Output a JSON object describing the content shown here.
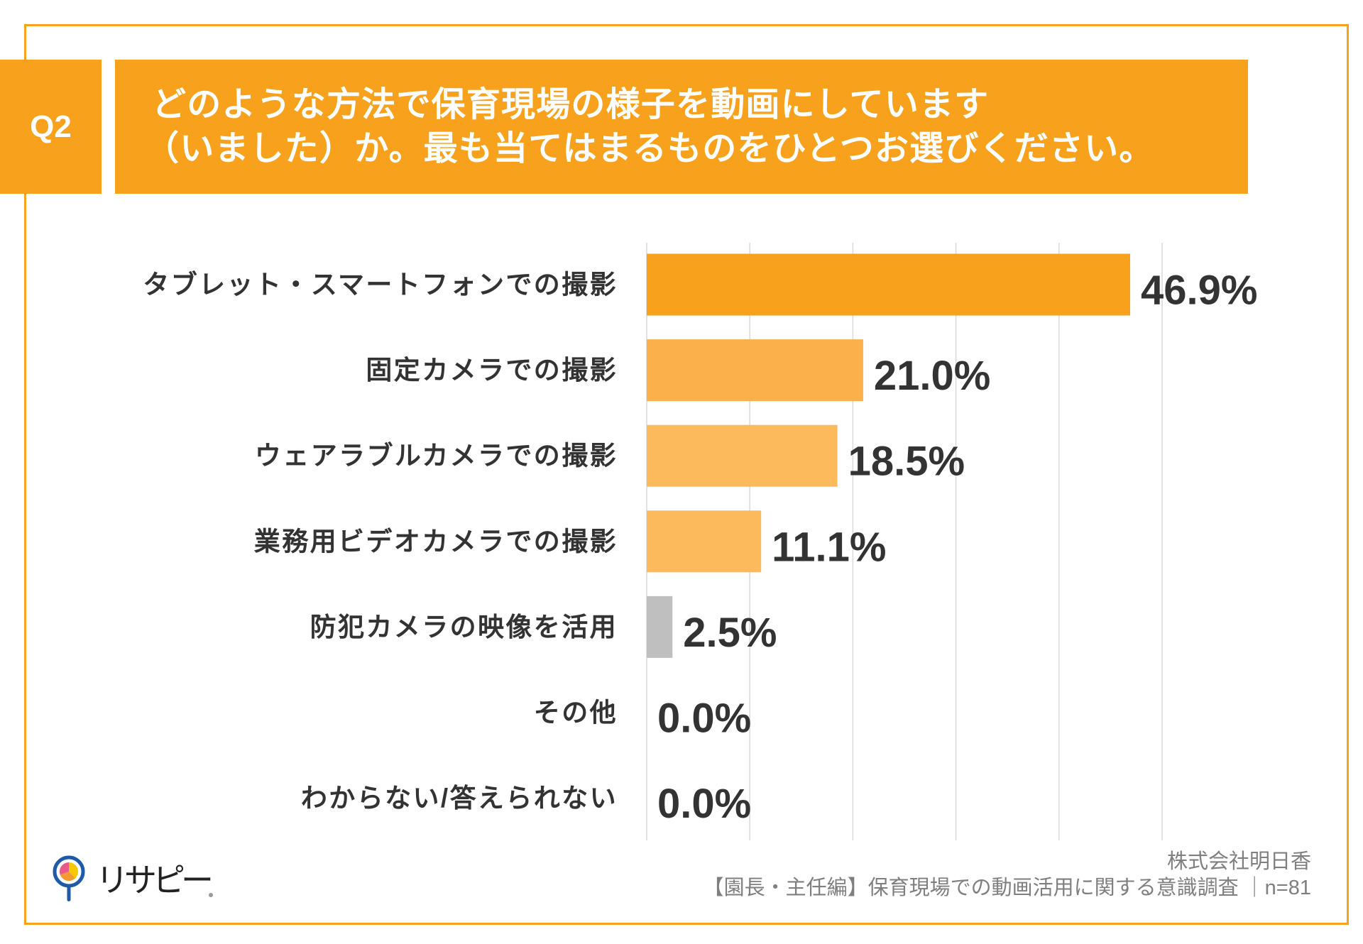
{
  "theme": {
    "accent": "#F7A11C"
  },
  "header": {
    "question_no": "Q2",
    "question_lines": [
      "どのような方法で保育現場の様子を動画にしています",
      "（いました）か。最も当てはまるものをひとつお選びください。"
    ]
  },
  "chart_data": {
    "type": "bar",
    "horizontal": true,
    "categories": [
      "タブレット・スマートフォンでの撮影",
      "固定カメラでの撮影",
      "ウェアラブルカメラでの撮影",
      "業務用ビデオカメラでの撮影",
      "防犯カメラの映像を活用",
      "その他",
      "わからない/答えられない"
    ],
    "values": [
      46.9,
      21.0,
      18.5,
      11.1,
      2.5,
      0.0,
      0.0
    ],
    "value_labels": [
      "46.9%",
      "21.0%",
      "18.5%",
      "11.1%",
      "2.5%",
      "0.0%",
      "0.0%"
    ],
    "xlim": [
      0,
      50
    ],
    "grid": true,
    "grid_interval": 10,
    "bar_colors": [
      "#F7A11C",
      "#FBB04B",
      "#FCBA5C",
      "#FCBA5C",
      "#BFBFBF",
      "#BFBFBF",
      "#BFBFBF"
    ]
  },
  "logo": {
    "text": "リサピー",
    "icon": "map-pin-icon"
  },
  "footer": {
    "company": "株式会社明日香",
    "survey": "【園長・主任編】保育現場での動画活用に関する意識調査 ｜n=81"
  }
}
